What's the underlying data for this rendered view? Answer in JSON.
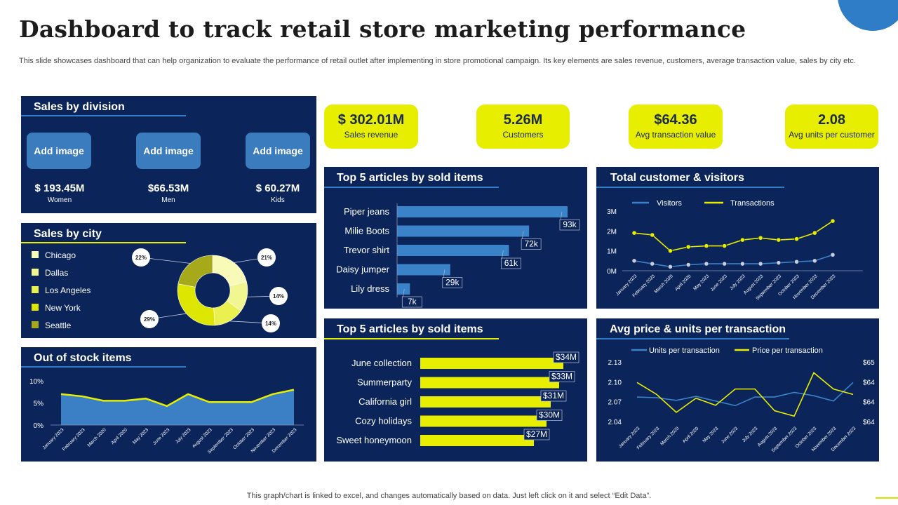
{
  "page": {
    "title": "Dashboard to track retail store marketing performance",
    "subtitle": "This slide showcases dashboard that can help organization to evaluate the performance of retail outlet after implementing in store promotional campaign. Its key elements are sales revenue, customers, average transaction value, sales by city  etc.",
    "footer": "This graph/chart is linked to excel,  and changes automatically based on data. Just left click on it and select “Edit Data”."
  },
  "colors": {
    "panel": "#0b2459",
    "accent_yellow": "#e7ee00",
    "accent_blue": "#2e7dc6"
  },
  "sales_by_division": {
    "title": "Sales by division",
    "items": [
      {
        "button": "Add image",
        "value": "$ 193.45M",
        "label": "Women"
      },
      {
        "button": "Add image",
        "value": "$66.53M",
        "label": "Men"
      },
      {
        "button": "Add image",
        "value": "$ 60.27M",
        "label": "Kids"
      }
    ]
  },
  "kpis": [
    {
      "value": "$ 302.01M",
      "label": "Sales revenue"
    },
    {
      "value": "5.26M",
      "label": "Customers"
    },
    {
      "value": "$64.36",
      "label": "Avg transaction value"
    },
    {
      "value": "2.08",
      "label": "Avg units per customer"
    }
  ],
  "sales_by_city": {
    "title": "Sales by city"
  },
  "out_of_stock": {
    "title": "Out of stock items"
  },
  "top_articles_1": {
    "title": "Top 5 articles by sold items"
  },
  "top_articles_2": {
    "title": "Top 5 articles by sold items"
  },
  "customers_visitors": {
    "title": "Total customer & visitors"
  },
  "avg_price_units": {
    "title": "Avg price & units per transaction"
  },
  "chart_data": [
    {
      "id": "sales_by_city",
      "type": "pie",
      "title": "Sales by city",
      "categories": [
        "Chicago",
        "Dallas",
        "Los Angeles",
        "New York",
        "Seattle"
      ],
      "values": [
        21,
        14,
        14,
        29,
        22
      ],
      "labels": [
        "21%",
        "14%",
        "14%",
        "29%",
        "22%"
      ],
      "colors": [
        "#f8fab8",
        "#f2f690",
        "#e9f050",
        "#dce600",
        "#a6a91a"
      ]
    },
    {
      "id": "top_articles_1",
      "type": "bar",
      "title": "Top 5 articles by sold items",
      "categories": [
        "Piper jeans",
        "Milie Boots",
        "Trevor shirt",
        "Daisy jumper",
        "Lily dress"
      ],
      "values": [
        93,
        72,
        61,
        29,
        7
      ],
      "labels": [
        "93k",
        "72k",
        "61k",
        "29k",
        "7k"
      ]
    },
    {
      "id": "top_articles_2",
      "type": "bar",
      "title": "Top 5 articles by sold items",
      "categories": [
        "June collection",
        "Summerparty",
        "California girl",
        "Cozy holidays",
        "Sweet honeymoon"
      ],
      "values": [
        34,
        33,
        31,
        30,
        27
      ],
      "labels": [
        "$34M",
        "$33M",
        "$31M",
        "$30M",
        "$27M"
      ]
    },
    {
      "id": "customers_visitors",
      "type": "line",
      "title": "Total customer & visitors",
      "categories": [
        "January 2023",
        "February 2023",
        "March 2020",
        "April 2020",
        "May 2023",
        "June 2023",
        "July 2023",
        "August 2023",
        "September 2023",
        "October 2023",
        "November 2023",
        "December 2023"
      ],
      "series": [
        {
          "name": "Visitors",
          "values": [
            0.5,
            0.35,
            0.2,
            0.3,
            0.35,
            0.35,
            0.35,
            0.35,
            0.4,
            0.45,
            0.5,
            0.8
          ]
        },
        {
          "name": "Transactions",
          "values": [
            1.9,
            1.8,
            1.0,
            1.2,
            1.25,
            1.25,
            1.55,
            1.65,
            1.55,
            1.6,
            1.9,
            2.5
          ]
        }
      ],
      "yticks": [
        "0M",
        "1M",
        "2M",
        "3M"
      ],
      "ylim": [
        0,
        3
      ]
    },
    {
      "id": "out_of_stock",
      "type": "area",
      "title": "Out of stock items",
      "categories": [
        "January 2023",
        "February 2023",
        "March 2020",
        "April 2020",
        "May 2023",
        "June 2023",
        "July 2023",
        "August 2023",
        "September 2023",
        "October 2023",
        "November 2023",
        "December 2023"
      ],
      "values": [
        7.0,
        6.5,
        5.5,
        5.5,
        6.0,
        4.3,
        7.0,
        5.2,
        5.2,
        5.2,
        7.0,
        8.0
      ],
      "yticks": [
        "0%",
        "5%",
        "10%"
      ],
      "ylim": [
        0,
        10
      ]
    },
    {
      "id": "avg_price_units",
      "type": "line",
      "title": "Avg price & units per transaction",
      "categories": [
        "January 2023",
        "February 2023",
        "March 2020",
        "April 2020",
        "May 2023",
        "June 2023",
        "July 2023",
        "August 2023",
        "September 2023",
        "October 2023",
        "November 2023",
        "December 2023"
      ],
      "series": [
        {
          "name": "Units per transaction",
          "axis": "left",
          "values": [
            2.077,
            2.076,
            2.072,
            2.078,
            2.071,
            2.064,
            2.077,
            2.077,
            2.084,
            2.079,
            2.071,
            2.099
          ]
        },
        {
          "name": "Price per transaction",
          "axis": "right",
          "values": [
            64.62,
            64.4,
            64.07,
            64.33,
            64.2,
            64.5,
            64.5,
            64.1,
            64.0,
            64.8,
            64.5,
            64.4
          ]
        }
      ],
      "yticks_left": [
        "2.04",
        "2.07",
        "2.10",
        "2.13"
      ],
      "ylim_left": [
        2.04,
        2.13
      ],
      "yticks_right": [
        "$64",
        "$64",
        "$64",
        "$65"
      ],
      "ylim_right": [
        63.9,
        65.0
      ]
    }
  ]
}
